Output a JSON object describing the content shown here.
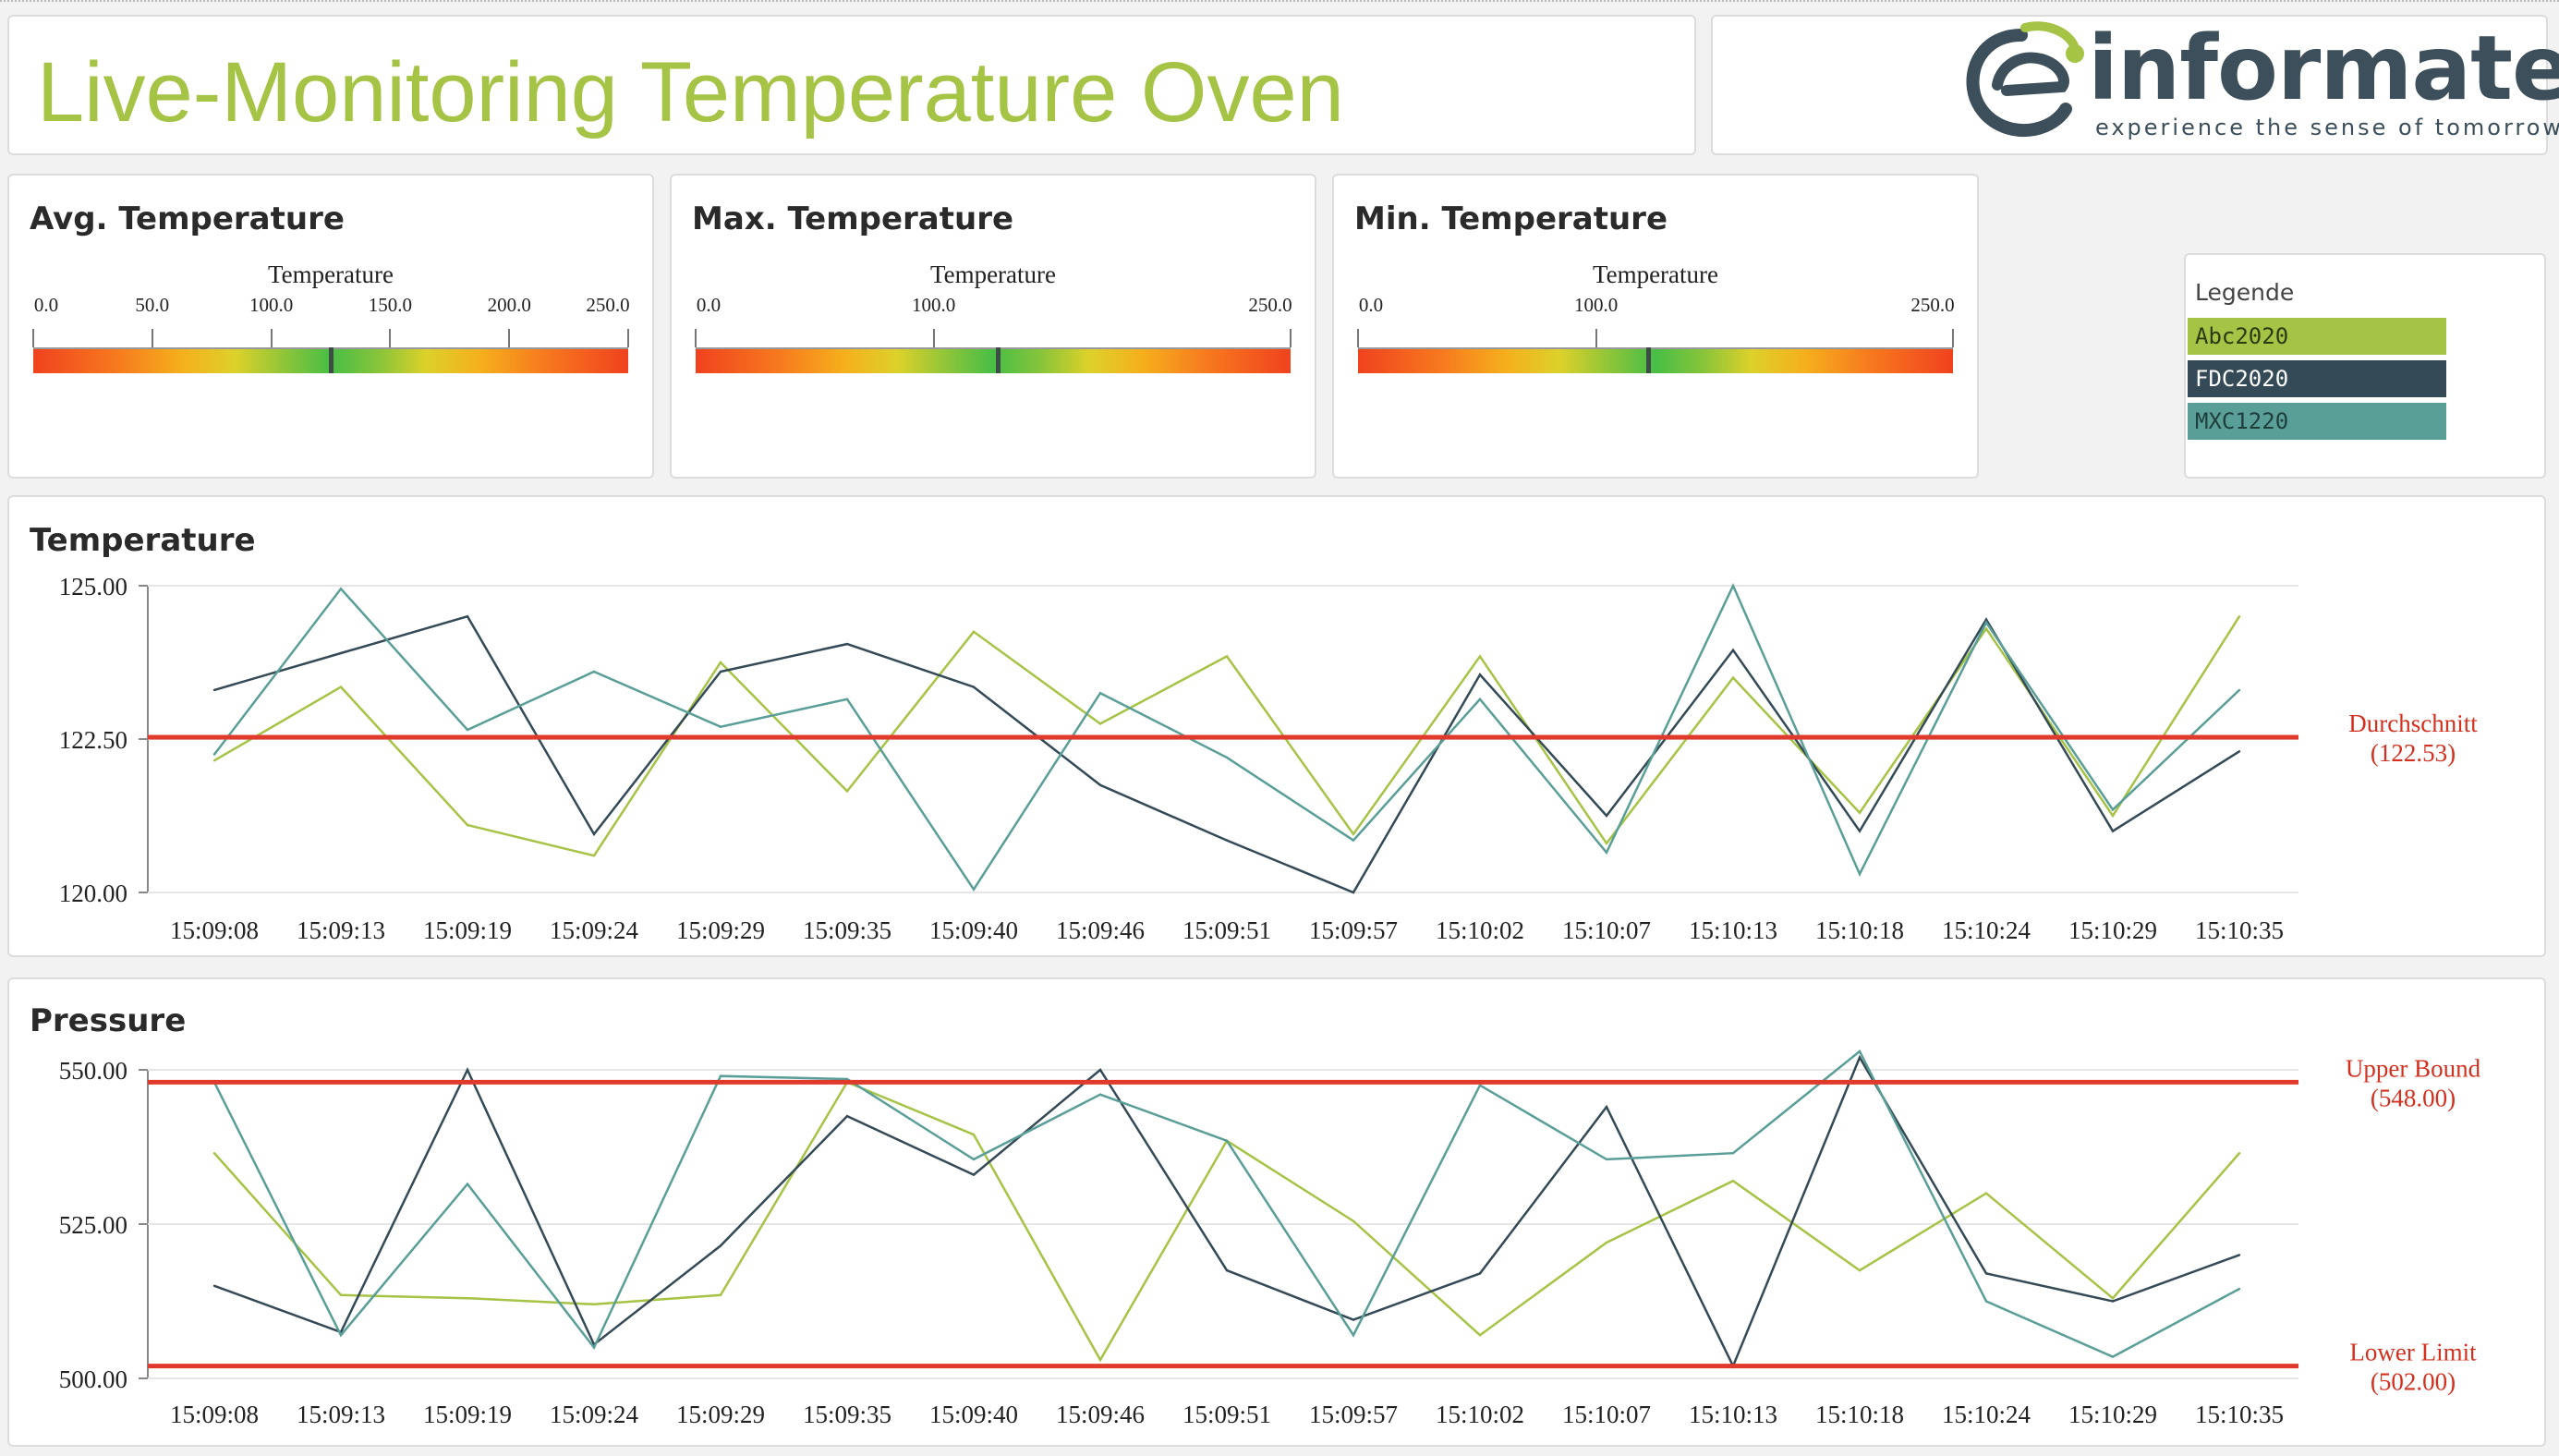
{
  "header": {
    "title": "Live-Monitoring Temperature Oven",
    "brand_name": "informatec",
    "brand_tagline": "experience the sense of tomorrow",
    "accent_color": "#a5c345"
  },
  "gauges": [
    {
      "title": "Avg. Temperature",
      "subtitle": "Temperature",
      "ticks": [
        "0.0",
        "50.0",
        "100.0",
        "150.0",
        "200.0",
        "250.0"
      ],
      "tick_values": [
        0,
        50,
        100,
        150,
        200,
        250
      ],
      "value": 125
    },
    {
      "title": "Max. Temperature",
      "subtitle": "Temperature",
      "ticks": [
        "0.0",
        "100.0",
        "250.0"
      ],
      "tick_values": [
        0,
        100,
        250
      ],
      "value": 127
    },
    {
      "title": "Min. Temperature",
      "subtitle": "Temperature",
      "ticks": [
        "0.0",
        "100.0",
        "250.0"
      ],
      "tick_values": [
        0,
        100,
        250
      ],
      "value": 122
    }
  ],
  "legend": {
    "title": "Legende",
    "items": [
      {
        "label": "Abc2020",
        "color": "#a5c345",
        "text_color": "#2d3a10"
      },
      {
        "label": "FDC2020",
        "color": "#344a56",
        "text_color": "#ffffff"
      },
      {
        "label": "MXC1220",
        "color": "#5a9e98",
        "text_color": "#1e3f3c"
      }
    ]
  },
  "chart_data": [
    {
      "type": "line",
      "title": "Temperature",
      "x": [
        "15:09:08",
        "15:09:13",
        "15:09:19",
        "15:09:24",
        "15:09:29",
        "15:09:35",
        "15:09:40",
        "15:09:46",
        "15:09:51",
        "15:09:57",
        "15:10:02",
        "15:10:07",
        "15:10:13",
        "15:10:18",
        "15:10:24",
        "15:10:29",
        "15:10:35"
      ],
      "ylim": [
        120,
        125
      ],
      "yticks": [
        "120.00",
        "122.50",
        "125.00"
      ],
      "ytick_values": [
        120,
        122.5,
        125
      ],
      "grid": true,
      "series": [
        {
          "name": "Abc2020",
          "color": "#a5c345",
          "values": [
            122.15,
            123.35,
            121.1,
            120.6,
            123.75,
            121.65,
            124.25,
            122.75,
            123.85,
            120.95,
            123.85,
            120.8,
            123.5,
            121.3,
            124.3,
            121.25,
            124.5
          ]
        },
        {
          "name": "FDC2020",
          "color": "#344a56",
          "values": [
            123.3,
            123.9,
            124.5,
            120.95,
            123.6,
            124.05,
            123.35,
            121.75,
            120.85,
            120.0,
            123.55,
            121.25,
            123.95,
            121.0,
            124.45,
            121.0,
            122.3
          ]
        },
        {
          "name": "MXC1220",
          "color": "#5a9e98",
          "values": [
            122.25,
            124.95,
            122.65,
            123.6,
            122.7,
            123.15,
            120.05,
            123.25,
            122.2,
            120.85,
            123.15,
            120.65,
            125.0,
            120.3,
            124.4,
            121.35,
            123.3
          ]
        }
      ],
      "reference_lines": [
        {
          "label": "Durchschnitt",
          "value_label": "(122.53)",
          "value": 122.53,
          "color": "#e03a2c"
        }
      ]
    },
    {
      "type": "line",
      "title": "Pressure",
      "x": [
        "15:09:08",
        "15:09:13",
        "15:09:19",
        "15:09:24",
        "15:09:29",
        "15:09:35",
        "15:09:40",
        "15:09:46",
        "15:09:51",
        "15:09:57",
        "15:10:02",
        "15:10:07",
        "15:10:13",
        "15:10:18",
        "15:10:24",
        "15:10:29",
        "15:10:35"
      ],
      "ylim": [
        500,
        550
      ],
      "yticks": [
        "500.00",
        "525.00",
        "550.00"
      ],
      "ytick_values": [
        500,
        525,
        550
      ],
      "grid": true,
      "series": [
        {
          "name": "Abc2020",
          "color": "#a5c345",
          "values": [
            536.5,
            513.5,
            513.0,
            512.0,
            513.5,
            548.0,
            539.5,
            503.0,
            538.5,
            525.5,
            507.0,
            522.0,
            532.0,
            517.5,
            530.0,
            513.0,
            536.5
          ]
        },
        {
          "name": "FDC2020",
          "color": "#344a56",
          "values": [
            515.0,
            507.5,
            550.0,
            505.5,
            521.5,
            542.5,
            533.0,
            550.0,
            517.5,
            509.5,
            517.0,
            544.0,
            502.0,
            552.0,
            517.0,
            512.5,
            520.0
          ]
        },
        {
          "name": "MXC1220",
          "color": "#5a9e98",
          "values": [
            548.0,
            507.0,
            531.5,
            505.0,
            549.0,
            548.5,
            535.5,
            546.0,
            538.5,
            507.0,
            547.5,
            535.5,
            536.5,
            553.0,
            512.5,
            503.5,
            514.5
          ]
        }
      ],
      "reference_lines": [
        {
          "label": "Upper Bound",
          "value_label": "(548.00)",
          "value": 548,
          "color": "#e03a2c"
        },
        {
          "label": "Lower Limit",
          "value_label": "(502.00)",
          "value": 502,
          "color": "#e03a2c"
        }
      ]
    }
  ]
}
